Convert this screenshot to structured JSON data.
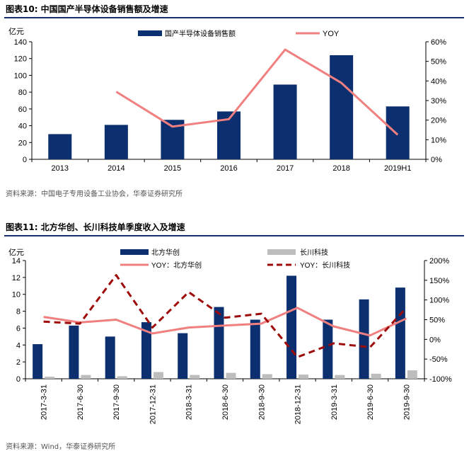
{
  "colors": {
    "bar_navy": "#0b2f6f",
    "bar_gray": "#bdbdbd",
    "line_pink": "#f07f7f",
    "line_darkred": "#9e0b0b",
    "rule_navy": "#1a2f6b"
  },
  "figure1": {
    "title": "图表10:   中国国产半导体设备销售额及增速",
    "source": "资料来源：中国电子专用设备工业协会，华泰证券研究所"
  },
  "figure2": {
    "title": "图表11:   北方华创、长川科技单季度收入及增速",
    "source": "资料来源：Wind，华泰证券研究所"
  },
  "chart_data": [
    {
      "type": "bar",
      "title": "图表10:   中国国产半导体设备销售额及增速",
      "ylabel": "亿元",
      "categories": [
        "2013",
        "2014",
        "2015",
        "2016",
        "2017",
        "2018",
        "2019H1"
      ],
      "ylim": [
        0,
        140
      ],
      "yticks": [
        "0",
        "20",
        "40",
        "60",
        "80",
        "100",
        "120",
        "140"
      ],
      "y2lim": [
        0,
        60
      ],
      "y2ticks": [
        "0%",
        "10%",
        "20%",
        "30%",
        "40%",
        "50%",
        "60%"
      ],
      "legend_position": "top",
      "series": [
        {
          "name": "国产半导体设备销售额",
          "kind": "bar",
          "axis": "left",
          "values": [
            30,
            41,
            47,
            57,
            89,
            124,
            63
          ]
        },
        {
          "name": "YOY",
          "kind": "line",
          "axis": "right",
          "values": [
            null,
            34.5,
            16.7,
            20.5,
            56,
            39,
            12.5
          ]
        }
      ]
    },
    {
      "type": "bar",
      "title": "图表11:   北方华创、长川科技单季度收入及增速",
      "ylabel": "亿元",
      "categories": [
        "2017-3-31",
        "2017-6-30",
        "2017-9-30",
        "2017-12-31",
        "2018-3-31",
        "2018-6-30",
        "2018-9-30",
        "2018-12-31",
        "2019-3-31",
        "2019-6-30",
        "2019-9-30"
      ],
      "ylim": [
        0,
        14
      ],
      "yticks": [
        "0",
        "2",
        "4",
        "6",
        "8",
        "10",
        "12",
        "14"
      ],
      "y2lim": [
        -100,
        200
      ],
      "y2ticks": [
        "-100%",
        "-50%",
        "0%",
        "50%",
        "100%",
        "150%",
        "200%"
      ],
      "legend_position": "top",
      "series": [
        {
          "name": "北方华创",
          "kind": "bar",
          "axis": "left",
          "values": [
            4.1,
            6.3,
            5.0,
            6.7,
            5.4,
            8.5,
            7.0,
            12.2,
            7.0,
            9.4,
            10.8
          ]
        },
        {
          "name": "长川科技",
          "kind": "bar",
          "axis": "left",
          "values": [
            0.25,
            0.45,
            0.3,
            0.8,
            0.45,
            0.7,
            0.55,
            0.5,
            0.45,
            0.6,
            1.0
          ]
        },
        {
          "name": "YOY：北方华创",
          "kind": "line",
          "axis": "right",
          "values": [
            57,
            43,
            50,
            15,
            30,
            35,
            40,
            80,
            33,
            10,
            53
          ]
        },
        {
          "name": "YOY：长川科技",
          "kind": "line-dashed",
          "axis": "right",
          "values": [
            45,
            40,
            163,
            30,
            120,
            55,
            65,
            -45,
            -10,
            -20,
            80
          ]
        }
      ]
    }
  ]
}
